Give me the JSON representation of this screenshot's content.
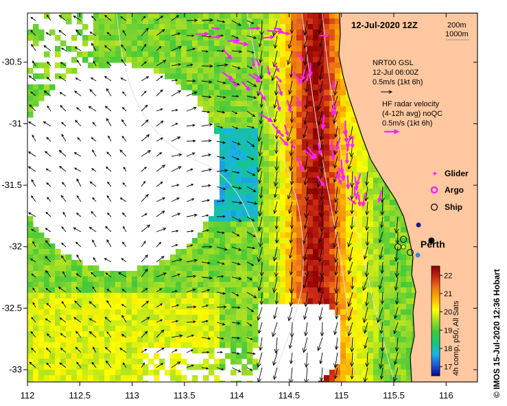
{
  "map": {
    "date_title": "12-Jul-2020 12Z",
    "depth_contours": [
      "200m",
      "1000m"
    ],
    "x_ticks": [
      112,
      112.5,
      113,
      113.5,
      114,
      114.5,
      115,
      115.5,
      116
    ],
    "y_ticks": [
      -30.5,
      -31,
      -31.5,
      -32,
      -32.5,
      -33
    ],
    "x_range": [
      112,
      116.3
    ],
    "y_range": [
      -33.1,
      -30.1
    ]
  },
  "wind": {
    "title": "NRT00 GSL",
    "time": "12-Jul 06:00Z",
    "scale": "0.5m/s (1kt 6h)",
    "arrow_color": "#000000"
  },
  "hf_radar": {
    "title": "HF radar velocity",
    "subtitle": "(4-12h avg) noQC",
    "scale": "0.5m/s (1kt 6h)",
    "arrow_color": "#ff22ff"
  },
  "legend": {
    "glider": "Glider",
    "argo": "Argo",
    "ship": "Ship",
    "glider_color": "#ff22ff",
    "argo_color": "#ff22ff"
  },
  "city": {
    "name": "Perth",
    "lon": 115.86,
    "lat": -31.95
  },
  "colorbar": {
    "label": "4h comp, p50, All Sats",
    "ticks": [
      17,
      18,
      19,
      20,
      21,
      22
    ],
    "range": [
      16.5,
      22.5
    ],
    "colors": [
      "#0a0a8c",
      "#1e5adc",
      "#19b4e6",
      "#14c878",
      "#3cc83c",
      "#a0dc28",
      "#ffff00",
      "#ffb400",
      "#f07814",
      "#c82814",
      "#8c0000"
    ]
  },
  "credit": "© IMOS 15-Jul-2020 12:36 Hobart",
  "land_color": "#ffc8a0"
}
